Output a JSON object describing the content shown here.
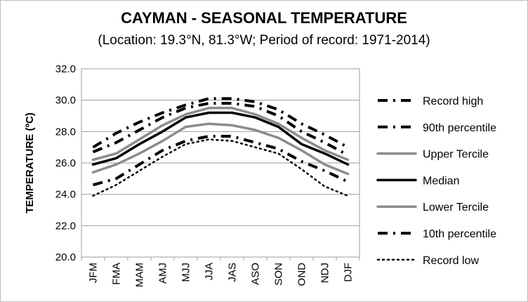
{
  "chart_data": {
    "type": "line",
    "title": "CAYMAN - SEASONAL TEMPERATURE",
    "subtitle": "(Location: 19.3°N, 81.3°W; Period of record: 1971-2014)",
    "ylabel": "TEMPERATURE (ºC)",
    "xlabel": "",
    "ylim": [
      20,
      32
    ],
    "yticks": [
      "20.0",
      "22.0",
      "24.0",
      "26.0",
      "28.0",
      "30.0",
      "32.0"
    ],
    "grid": true,
    "legend_position": "right",
    "categories": [
      "JFM",
      "FMA",
      "MAM",
      "AMJ",
      "MJJ",
      "JJA",
      "JAS",
      "ASO",
      "SON",
      "OND",
      "NDJ",
      "DJF"
    ],
    "series": [
      {
        "name": "Record high",
        "color": "#000000",
        "style": "dashdot-heavy",
        "values": [
          27.0,
          27.9,
          28.6,
          29.2,
          29.7,
          30.1,
          30.1,
          29.9,
          29.4,
          28.5,
          27.8,
          27.0
        ]
      },
      {
        "name": "90th percentile",
        "color": "#000000",
        "style": "dashdot-heavy",
        "values": [
          26.7,
          27.3,
          28.1,
          28.9,
          29.5,
          29.8,
          29.8,
          29.6,
          29.0,
          28.0,
          27.3,
          26.5
        ]
      },
      {
        "name": "Upper Tercile",
        "color": "#8c8c8c",
        "style": "solid-gray",
        "values": [
          26.2,
          26.6,
          27.5,
          28.4,
          29.1,
          29.5,
          29.5,
          29.1,
          28.5,
          27.6,
          26.8,
          26.2
        ]
      },
      {
        "name": "Median",
        "color": "#000000",
        "style": "solid-black",
        "values": [
          25.9,
          26.3,
          27.2,
          28.0,
          28.9,
          29.2,
          29.2,
          28.9,
          28.3,
          27.2,
          26.6,
          25.9
        ]
      },
      {
        "name": "Lower Tercile",
        "color": "#8c8c8c",
        "style": "solid-gray",
        "values": [
          25.4,
          25.9,
          26.6,
          27.4,
          28.3,
          28.5,
          28.4,
          28.1,
          27.6,
          26.8,
          25.9,
          25.3
        ]
      },
      {
        "name": "10th percentile",
        "color": "#000000",
        "style": "dashdot-heavy",
        "values": [
          24.6,
          25.0,
          25.9,
          26.8,
          27.4,
          27.7,
          27.7,
          27.3,
          26.9,
          26.1,
          25.5,
          24.8
        ]
      },
      {
        "name": "Record low",
        "color": "#000000",
        "style": "dotted",
        "values": [
          23.9,
          24.6,
          25.5,
          26.4,
          27.2,
          27.5,
          27.4,
          27.0,
          26.6,
          25.6,
          24.5,
          23.9
        ]
      }
    ]
  }
}
